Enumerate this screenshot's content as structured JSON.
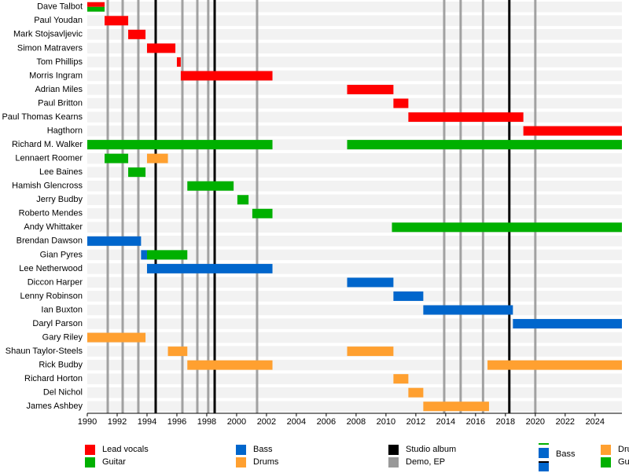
{
  "chart_data": {
    "type": "timeline",
    "xlim": [
      1990,
      2025.8
    ],
    "xticks": [
      1990,
      1992,
      1994,
      1996,
      1998,
      2000,
      2002,
      2004,
      2006,
      2008,
      2010,
      2012,
      2014,
      2016,
      2018,
      2020,
      2022,
      2024
    ],
    "roles": [
      {
        "name": "Lead vocals",
        "color": "#ff0000"
      },
      {
        "name": "Guitar",
        "color": "#00b000"
      },
      {
        "name": "Bass",
        "color": "#0066cc"
      },
      {
        "name": "Drums",
        "color": "#ffa030"
      }
    ],
    "event_types": [
      {
        "name": "Studio album",
        "color": "#000000",
        "dates": [
          1994.58,
          1998.53,
          2018.26
        ]
      },
      {
        "name": "Demo, EP",
        "color": "#999999",
        "dates": [
          1991.37,
          1992.37,
          1993.42,
          1996.37,
          1997.37,
          1998.1,
          2001.37,
          2013.9,
          2015.0,
          2016.5,
          2020.0
        ]
      }
    ],
    "legend2": [
      {
        "name": "Bass",
        "color": "#0066cc",
        "line": "#00b000"
      },
      {
        "name": "Drums",
        "color": "#ffa030"
      },
      {
        "name": "Guitar",
        "color": "#00b000"
      }
    ],
    "rows": [
      {
        "name": "Dave Talbot",
        "spans": [
          {
            "role": "Lead vocals",
            "start": 1990,
            "end": 1991.16
          },
          {
            "role": "Guitar",
            "start": 1990,
            "end": 1991.16
          }
        ]
      },
      {
        "name": "Paul Youdan",
        "spans": [
          {
            "role": "Lead vocals",
            "start": 1991.16,
            "end": 1992.74
          }
        ]
      },
      {
        "name": "Mark Stojsavljevic",
        "spans": [
          {
            "role": "Lead vocals",
            "start": 1992.74,
            "end": 1993.9
          }
        ]
      },
      {
        "name": "Simon Matravers",
        "spans": [
          {
            "role": "Lead vocals",
            "start": 1994.0,
            "end": 1995.9
          }
        ]
      },
      {
        "name": "Tom Phillips",
        "spans": [
          {
            "role": "Lead vocals",
            "start": 1996.0,
            "end": 1996.26
          }
        ]
      },
      {
        "name": "Morris Ingram",
        "spans": [
          {
            "role": "Lead vocals",
            "start": 1996.26,
            "end": 2002.4
          }
        ]
      },
      {
        "name": "Adrian Miles",
        "spans": [
          {
            "role": "Lead vocals",
            "start": 2007.4,
            "end": 2010.5
          }
        ]
      },
      {
        "name": "Paul Britton",
        "spans": [
          {
            "role": "Lead vocals",
            "start": 2010.5,
            "end": 2011.5
          }
        ]
      },
      {
        "name": "Paul Thomas Kearns",
        "spans": [
          {
            "role": "Lead vocals",
            "start": 2011.5,
            "end": 2019.2
          }
        ]
      },
      {
        "name": "Hagthorn",
        "spans": [
          {
            "role": "Lead vocals",
            "start": 2019.2,
            "end": 2025.8
          }
        ]
      },
      {
        "name": "Richard M. Walker",
        "spans": [
          {
            "role": "Guitar",
            "start": 1990,
            "end": 2002.4
          },
          {
            "role": "Guitar",
            "start": 2007.4,
            "end": 2025.8
          }
        ]
      },
      {
        "name": "Lennaert Roomer",
        "spans": [
          {
            "role": "Guitar",
            "start": 1991.16,
            "end": 1992.74
          },
          {
            "role": "Drums",
            "start": 1994.0,
            "end": 1995.4
          }
        ]
      },
      {
        "name": "Lee Baines",
        "spans": [
          {
            "role": "Guitar",
            "start": 1992.74,
            "end": 1993.9
          }
        ]
      },
      {
        "name": "Hamish Glencross",
        "spans": [
          {
            "role": "Guitar",
            "start": 1996.7,
            "end": 1999.8
          }
        ]
      },
      {
        "name": "Jerry Budby",
        "spans": [
          {
            "role": "Guitar",
            "start": 2000.05,
            "end": 2000.8
          }
        ]
      },
      {
        "name": "Roberto Mendes",
        "spans": [
          {
            "role": "Guitar",
            "start": 2001.05,
            "end": 2002.4
          }
        ]
      },
      {
        "name": "Andy Whittaker",
        "spans": [
          {
            "role": "Guitar",
            "start": 2010.4,
            "end": 2025.8
          }
        ]
      },
      {
        "name": "Brendan Dawson",
        "spans": [
          {
            "role": "Bass",
            "start": 1990,
            "end": 1993.6
          }
        ]
      },
      {
        "name": "Gian Pyres",
        "spans": [
          {
            "role": "Bass",
            "start": 1993.6,
            "end": 1994.0
          },
          {
            "role": "Guitar",
            "start": 1994.0,
            "end": 1996.7
          }
        ]
      },
      {
        "name": "Lee Netherwood",
        "spans": [
          {
            "role": "Bass",
            "start": 1994.0,
            "end": 2002.4
          }
        ]
      },
      {
        "name": "Diccon Harper",
        "spans": [
          {
            "role": "Bass",
            "start": 2007.4,
            "end": 2010.5
          }
        ]
      },
      {
        "name": "Lenny Robinson",
        "spans": [
          {
            "role": "Bass",
            "start": 2010.5,
            "end": 2012.5
          }
        ]
      },
      {
        "name": "Ian Buxton",
        "spans": [
          {
            "role": "Bass",
            "start": 2012.5,
            "end": 2018.5
          }
        ]
      },
      {
        "name": "Daryl Parson",
        "spans": [
          {
            "role": "Bass",
            "start": 2018.5,
            "end": 2025.8
          }
        ]
      },
      {
        "name": "Gary Riley",
        "spans": [
          {
            "role": "Drums",
            "start": 1990,
            "end": 1993.9
          }
        ]
      },
      {
        "name": "Shaun Taylor-Steels",
        "spans": [
          {
            "role": "Drums",
            "start": 1995.4,
            "end": 1996.7
          },
          {
            "role": "Drums",
            "start": 2007.4,
            "end": 2010.5
          }
        ]
      },
      {
        "name": "Rick Budby",
        "spans": [
          {
            "role": "Drums",
            "start": 1996.7,
            "end": 2002.4
          },
          {
            "role": "Drums",
            "start": 2016.8,
            "end": 2025.8
          }
        ]
      },
      {
        "name": "Richard Horton",
        "spans": [
          {
            "role": "Drums",
            "start": 2010.5,
            "end": 2011.5
          }
        ]
      },
      {
        "name": "Del Nichol",
        "spans": [
          {
            "role": "Drums",
            "start": 2011.5,
            "end": 2012.5
          }
        ]
      },
      {
        "name": "James Ashbey",
        "spans": [
          {
            "role": "Drums",
            "start": 2012.5,
            "end": 2016.9
          }
        ]
      }
    ]
  }
}
